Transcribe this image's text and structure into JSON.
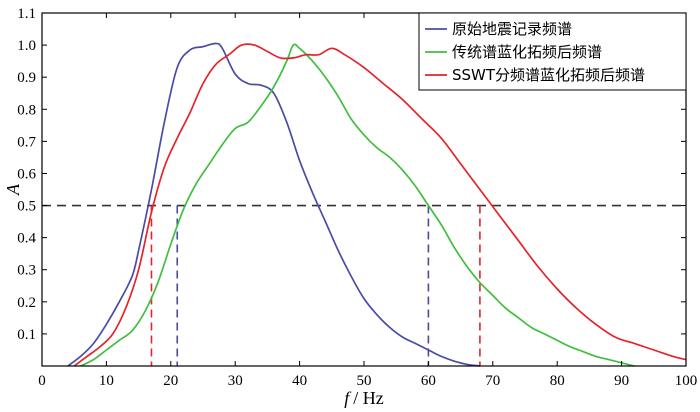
{
  "chart_data": {
    "type": "line",
    "title": "",
    "xlabel_italic": "f",
    "xlabel_unit": "/ Hz",
    "ylabel": "A",
    "xlim": [
      0,
      100
    ],
    "ylim": [
      0,
      1.1
    ],
    "xticks": [
      0,
      10,
      20,
      30,
      40,
      50,
      60,
      70,
      80,
      90,
      100
    ],
    "yticks": [
      0.1,
      0.2,
      0.3,
      0.4,
      0.5,
      0.6,
      0.7,
      0.8,
      0.9,
      1.0,
      1.1
    ],
    "xtick_labels": [
      "0",
      "10",
      "20",
      "30",
      "40",
      "50",
      "60",
      "70",
      "80",
      "90",
      "100"
    ],
    "ytick_labels": [
      "0.1",
      "0.2",
      "0.3",
      "0.4",
      "0.5",
      "0.6",
      "0.7",
      "0.8",
      "0.9",
      "1.0",
      "1.1"
    ],
    "legend_position": "top-right",
    "series": [
      {
        "name": "原始地震记录频谱",
        "color": "#4b4ba6",
        "x": [
          4,
          6,
          8,
          10,
          12,
          14,
          15,
          17,
          19,
          21,
          23,
          25,
          27,
          28,
          30,
          32,
          34,
          36,
          38,
          40,
          42,
          44,
          46,
          48,
          50,
          52,
          54,
          56,
          58,
          60,
          62,
          64,
          66,
          68
        ],
        "y": [
          0.0,
          0.03,
          0.07,
          0.13,
          0.2,
          0.28,
          0.36,
          0.55,
          0.76,
          0.93,
          0.985,
          0.995,
          1.005,
          0.99,
          0.91,
          0.88,
          0.875,
          0.85,
          0.76,
          0.64,
          0.54,
          0.45,
          0.36,
          0.28,
          0.21,
          0.16,
          0.12,
          0.09,
          0.07,
          0.05,
          0.03,
          0.015,
          0.005,
          0.0
        ]
      },
      {
        "name": "传统谱蓝化拓频后频谱",
        "color": "#3fbf3f",
        "x": [
          6,
          8,
          10,
          12,
          14,
          16,
          18,
          20,
          22,
          24,
          26,
          28,
          30,
          32,
          34,
          36,
          38,
          39,
          40,
          42,
          44,
          46,
          48,
          50,
          52,
          54,
          56,
          58,
          60,
          62,
          64,
          66,
          68,
          70,
          72,
          74,
          76,
          78,
          80,
          82,
          84,
          86,
          88,
          90,
          92
        ],
        "y": [
          0.0,
          0.02,
          0.05,
          0.08,
          0.11,
          0.17,
          0.26,
          0.38,
          0.49,
          0.57,
          0.63,
          0.69,
          0.74,
          0.76,
          0.81,
          0.87,
          0.95,
          1.0,
          0.99,
          0.95,
          0.9,
          0.84,
          0.77,
          0.72,
          0.68,
          0.65,
          0.61,
          0.56,
          0.5,
          0.44,
          0.37,
          0.31,
          0.26,
          0.22,
          0.18,
          0.15,
          0.12,
          0.1,
          0.08,
          0.06,
          0.045,
          0.03,
          0.02,
          0.01,
          0.0
        ]
      },
      {
        "name": "SSWT分频谱蓝化拓频后频谱",
        "color": "#e3252b",
        "x": [
          5,
          7,
          9,
          11,
          13,
          15,
          17,
          19,
          21,
          23,
          25,
          27,
          29,
          31,
          33,
          35,
          37,
          39,
          41,
          43,
          45,
          47,
          50,
          53,
          56,
          59,
          62,
          65,
          68,
          71,
          74,
          77,
          80,
          83,
          86,
          89,
          92,
          95,
          98,
          100
        ],
        "y": [
          0.0,
          0.03,
          0.06,
          0.1,
          0.18,
          0.3,
          0.48,
          0.62,
          0.71,
          0.79,
          0.88,
          0.94,
          0.97,
          1.0,
          1.0,
          0.98,
          0.96,
          0.96,
          0.97,
          0.97,
          0.99,
          0.97,
          0.93,
          0.88,
          0.83,
          0.77,
          0.71,
          0.63,
          0.55,
          0.47,
          0.39,
          0.31,
          0.24,
          0.18,
          0.13,
          0.09,
          0.07,
          0.05,
          0.03,
          0.02
        ]
      }
    ],
    "reference_lines": [
      {
        "orientation": "horizontal",
        "y": 0.5,
        "color": "#333333",
        "x_start": 0,
        "x_end": 100
      },
      {
        "orientation": "vertical",
        "x": 17,
        "y_end": 0.5,
        "color": "#e3252b"
      },
      {
        "orientation": "vertical",
        "x": 21,
        "y_end": 0.5,
        "color": "#4b4ba6"
      },
      {
        "orientation": "vertical",
        "x": 60,
        "y_end": 0.5,
        "color": "#4b4ba6"
      },
      {
        "orientation": "vertical",
        "x": 68,
        "y_end": 0.5,
        "color": "#e3252b"
      }
    ]
  }
}
